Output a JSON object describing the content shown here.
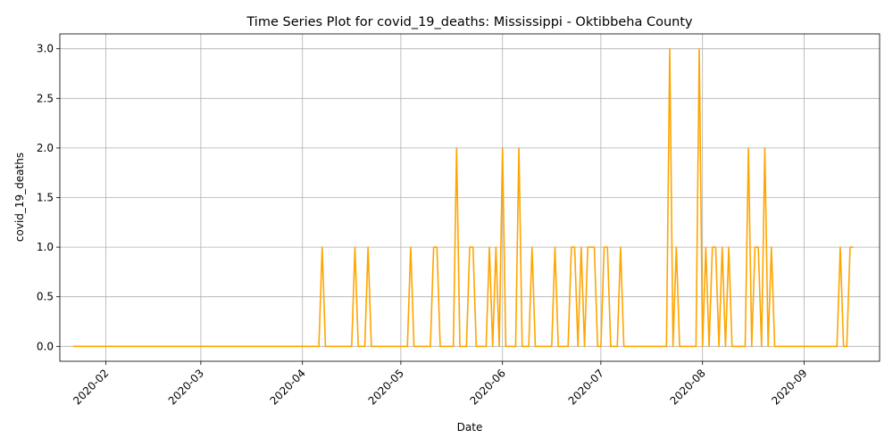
{
  "chart_data": {
    "type": "line",
    "title": "Time Series Plot for covid_19_deaths: Mississippi - Oktibbeha County",
    "xlabel": "Date",
    "ylabel": "covid_19_deaths",
    "x_type": "date",
    "xlim": [
      "2020-01-18",
      "2020-09-24"
    ],
    "ylim": [
      -0.15,
      3.15
    ],
    "x_ticks": [
      "2020-02",
      "2020-03",
      "2020-04",
      "2020-05",
      "2020-06",
      "2020-07",
      "2020-08",
      "2020-09"
    ],
    "x_tick_dates": [
      "2020-02-01",
      "2020-03-01",
      "2020-04-01",
      "2020-05-01",
      "2020-06-01",
      "2020-07-01",
      "2020-08-01",
      "2020-09-01"
    ],
    "y_ticks": [
      0.0,
      0.5,
      1.0,
      1.5,
      2.0,
      2.5,
      3.0
    ],
    "y_tick_labels": [
      "0.0",
      "0.5",
      "1.0",
      "1.5",
      "2.0",
      "2.5",
      "3.0"
    ],
    "grid": true,
    "series": [
      {
        "color": "#ffa500",
        "points": [
          [
            "2020-01-22",
            0
          ],
          [
            "2020-04-06",
            0
          ],
          [
            "2020-04-07",
            1
          ],
          [
            "2020-04-08",
            0
          ],
          [
            "2020-04-16",
            0
          ],
          [
            "2020-04-17",
            1
          ],
          [
            "2020-04-18",
            0
          ],
          [
            "2020-04-20",
            0
          ],
          [
            "2020-04-21",
            1
          ],
          [
            "2020-04-22",
            0
          ],
          [
            "2020-05-03",
            0
          ],
          [
            "2020-05-04",
            1
          ],
          [
            "2020-05-05",
            0
          ],
          [
            "2020-05-10",
            0
          ],
          [
            "2020-05-11",
            1
          ],
          [
            "2020-05-12",
            1
          ],
          [
            "2020-05-13",
            0
          ],
          [
            "2020-05-17",
            0
          ],
          [
            "2020-05-18",
            2
          ],
          [
            "2020-05-19",
            0
          ],
          [
            "2020-05-21",
            0
          ],
          [
            "2020-05-22",
            1
          ],
          [
            "2020-05-23",
            1
          ],
          [
            "2020-05-24",
            0
          ],
          [
            "2020-05-27",
            0
          ],
          [
            "2020-05-28",
            1
          ],
          [
            "2020-05-29",
            0
          ],
          [
            "2020-05-30",
            1
          ],
          [
            "2020-05-31",
            0
          ],
          [
            "2020-06-01",
            2
          ],
          [
            "2020-06-02",
            0
          ],
          [
            "2020-06-05",
            0
          ],
          [
            "2020-06-06",
            2
          ],
          [
            "2020-06-07",
            0
          ],
          [
            "2020-06-09",
            0
          ],
          [
            "2020-06-10",
            1
          ],
          [
            "2020-06-11",
            0
          ],
          [
            "2020-06-16",
            0
          ],
          [
            "2020-06-17",
            1
          ],
          [
            "2020-06-18",
            0
          ],
          [
            "2020-06-21",
            0
          ],
          [
            "2020-06-22",
            1
          ],
          [
            "2020-06-23",
            1
          ],
          [
            "2020-06-24",
            0
          ],
          [
            "2020-06-25",
            1
          ],
          [
            "2020-06-26",
            0
          ],
          [
            "2020-06-27",
            1
          ],
          [
            "2020-06-29",
            1
          ],
          [
            "2020-06-30",
            0
          ],
          [
            "2020-07-01",
            0
          ],
          [
            "2020-07-02",
            1
          ],
          [
            "2020-07-03",
            1
          ],
          [
            "2020-07-04",
            0
          ],
          [
            "2020-07-06",
            0
          ],
          [
            "2020-07-07",
            1
          ],
          [
            "2020-07-08",
            0
          ],
          [
            "2020-07-21",
            0
          ],
          [
            "2020-07-22",
            3
          ],
          [
            "2020-07-23",
            0
          ],
          [
            "2020-07-24",
            1
          ],
          [
            "2020-07-25",
            0
          ],
          [
            "2020-07-30",
            0
          ],
          [
            "2020-07-31",
            3
          ],
          [
            "2020-08-01",
            0
          ],
          [
            "2020-08-02",
            1
          ],
          [
            "2020-08-03",
            0
          ],
          [
            "2020-08-04",
            1
          ],
          [
            "2020-08-05",
            1
          ],
          [
            "2020-08-06",
            0
          ],
          [
            "2020-08-07",
            1
          ],
          [
            "2020-08-08",
            0
          ],
          [
            "2020-08-09",
            1
          ],
          [
            "2020-08-10",
            0
          ],
          [
            "2020-08-14",
            0
          ],
          [
            "2020-08-15",
            2
          ],
          [
            "2020-08-16",
            0
          ],
          [
            "2020-08-17",
            1
          ],
          [
            "2020-08-18",
            1
          ],
          [
            "2020-08-19",
            0
          ],
          [
            "2020-08-20",
            2
          ],
          [
            "2020-08-21",
            0
          ],
          [
            "2020-08-22",
            1
          ],
          [
            "2020-08-23",
            0
          ],
          [
            "2020-09-11",
            0
          ],
          [
            "2020-09-12",
            1
          ],
          [
            "2020-09-13",
            0
          ],
          [
            "2020-09-14",
            0
          ],
          [
            "2020-09-15",
            1
          ],
          [
            "2020-09-16",
            1
          ]
        ]
      }
    ]
  }
}
